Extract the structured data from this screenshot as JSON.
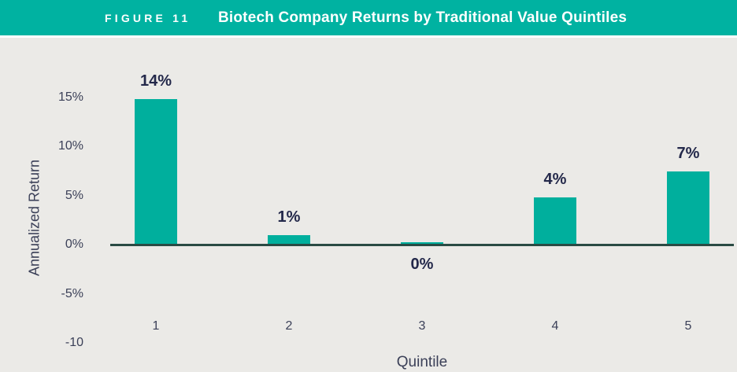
{
  "header": {
    "figure_label": "FIGURE 11",
    "title": "Biotech Company Returns by Traditional Value Quintiles"
  },
  "chart_data": {
    "type": "bar",
    "title": "Biotech Company Returns by Traditional Value Quintiles",
    "categories": [
      "1",
      "2",
      "3",
      "4",
      "5"
    ],
    "values": [
      14,
      1,
      0,
      4,
      7
    ],
    "bar_labels": [
      "14%",
      "1%",
      "0%",
      "4%",
      "7%"
    ],
    "bar_label_position": [
      "above",
      "above",
      "below",
      "above",
      "above"
    ],
    "visual_heights_pct": [
      14.8,
      0.95,
      0.25,
      4.8,
      7.45
    ],
    "xlabel": "Quintile",
    "ylabel": "Annualized Return",
    "yticks": [
      {
        "label": "15%",
        "value": 15
      },
      {
        "label": "10%",
        "value": 10
      },
      {
        "label": "5%",
        "value": 5
      },
      {
        "label": "0%",
        "value": 0
      },
      {
        "label": "-5%",
        "value": -5
      },
      {
        "label": "-10",
        "value": -10
      }
    ],
    "ylim": [
      -10,
      17
    ],
    "grid": false,
    "legend": "none",
    "bar_color": "#00af9d",
    "axis_line_color": "#2a4a44"
  },
  "colors": {
    "header_bg": "#00b2a1",
    "header_text": "#ffffff",
    "chart_bg": "#ebeae7",
    "bar": "#00af9d",
    "axis_line": "#2a4a44",
    "tick_text": "#3b4058",
    "data_label_text": "#23284a"
  }
}
